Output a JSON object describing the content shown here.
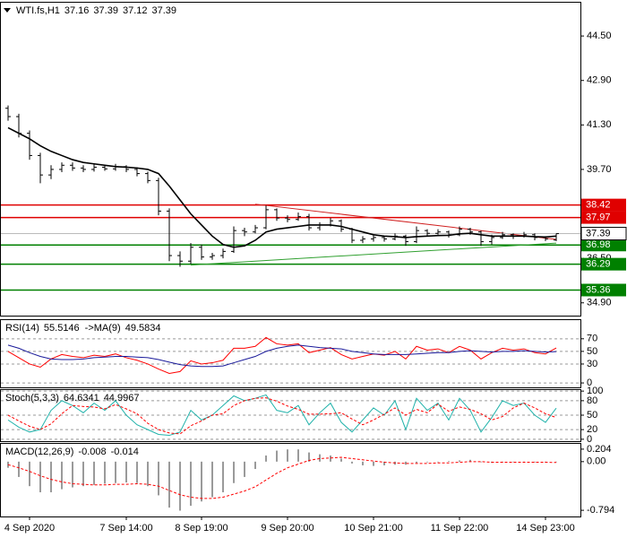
{
  "chart_data": [
    {
      "type": "candlestick",
      "title": "WTI.fs,H1",
      "color": "#000000",
      "categories": [
        null,
        null,
        "4 Sep 2020",
        null,
        null,
        null,
        null,
        null,
        null,
        null,
        null,
        "7 Sep 14:00",
        null,
        null,
        null,
        null,
        null,
        null,
        "8 Sep 19:00",
        null,
        null,
        null,
        null,
        null,
        null,
        null,
        "9 Sep 20:00",
        null,
        null,
        null,
        null,
        null,
        null,
        null,
        "10 Sep 21:00",
        null,
        null,
        null,
        null,
        null,
        null,
        null,
        "11 Sep 22:00",
        null,
        null,
        null,
        null,
        null,
        null,
        null,
        "14 Sep 23:00",
        null
      ],
      "ohlc": [
        [
          41.9,
          42.0,
          41.45,
          41.6
        ],
        [
          41.6,
          41.7,
          40.85,
          41.0
        ],
        [
          41.0,
          41.1,
          40.05,
          40.2
        ],
        [
          40.2,
          40.3,
          39.2,
          39.5
        ],
        [
          39.5,
          39.85,
          39.35,
          39.7
        ],
        [
          39.7,
          39.95,
          39.6,
          39.85
        ],
        [
          39.85,
          39.95,
          39.65,
          39.75
        ],
        [
          39.75,
          39.85,
          39.6,
          39.7
        ],
        [
          39.7,
          39.88,
          39.62,
          39.78
        ],
        [
          39.78,
          39.85,
          39.65,
          39.72
        ],
        [
          39.72,
          39.9,
          39.65,
          39.8
        ],
        [
          39.8,
          39.85,
          39.6,
          39.7
        ],
        [
          39.7,
          39.78,
          39.45,
          39.55
        ],
        [
          39.55,
          39.62,
          39.2,
          39.3
        ],
        [
          39.3,
          39.4,
          38.05,
          38.2
        ],
        [
          38.2,
          38.3,
          36.4,
          36.6
        ],
        [
          36.6,
          36.75,
          36.2,
          36.4
        ],
        [
          36.4,
          37.05,
          36.3,
          36.9
        ],
        [
          36.9,
          37.0,
          36.45,
          36.55
        ],
        [
          36.55,
          36.7,
          36.45,
          36.6
        ],
        [
          36.6,
          36.85,
          36.5,
          36.75
        ],
        [
          36.75,
          37.65,
          36.7,
          37.5
        ],
        [
          37.5,
          37.6,
          37.3,
          37.45
        ],
        [
          37.45,
          37.7,
          37.4,
          37.6
        ],
        [
          37.6,
          38.4,
          37.55,
          38.25
        ],
        [
          38.25,
          38.3,
          37.85,
          37.95
        ],
        [
          37.95,
          38.05,
          37.8,
          37.9
        ],
        [
          37.9,
          38.15,
          37.85,
          38.0
        ],
        [
          38.0,
          38.1,
          37.5,
          37.6
        ],
        [
          37.6,
          37.8,
          37.5,
          37.7
        ],
        [
          37.7,
          37.95,
          37.65,
          37.85
        ],
        [
          37.85,
          37.9,
          37.45,
          37.55
        ],
        [
          37.55,
          37.6,
          37.05,
          37.15
        ],
        [
          37.15,
          37.3,
          37.05,
          37.2
        ],
        [
          37.2,
          37.35,
          37.1,
          37.25
        ],
        [
          37.25,
          37.3,
          37.1,
          37.2
        ],
        [
          37.2,
          37.4,
          37.15,
          37.3
        ],
        [
          37.3,
          37.35,
          36.95,
          37.1
        ],
        [
          37.1,
          37.65,
          37.05,
          37.5
        ],
        [
          37.5,
          37.55,
          37.3,
          37.4
        ],
        [
          37.4,
          37.55,
          37.35,
          37.45
        ],
        [
          37.45,
          37.5,
          37.25,
          37.35
        ],
        [
          37.35,
          37.65,
          37.3,
          37.55
        ],
        [
          37.55,
          37.6,
          37.35,
          37.45
        ],
        [
          37.45,
          37.5,
          36.95,
          37.1
        ],
        [
          37.1,
          37.35,
          37.0,
          37.25
        ],
        [
          37.25,
          37.45,
          37.2,
          37.35
        ],
        [
          37.35,
          37.4,
          37.2,
          37.3
        ],
        [
          37.3,
          37.45,
          37.25,
          37.35
        ],
        [
          37.35,
          37.4,
          37.15,
          37.25
        ],
        [
          37.25,
          37.3,
          37.12,
          37.2
        ],
        [
          37.16,
          37.39,
          37.12,
          37.39
        ]
      ],
      "series": [
        {
          "type": "line",
          "color": "#000000",
          "values": [
            41.2,
            41.0,
            40.8,
            40.55,
            40.35,
            40.2,
            40.05,
            39.95,
            39.9,
            39.85,
            39.8,
            39.78,
            39.75,
            39.7,
            39.55,
            39.1,
            38.6,
            38.1,
            37.7,
            37.3,
            37.0,
            36.9,
            36.95,
            37.15,
            37.45,
            37.55,
            37.6,
            37.65,
            37.7,
            37.7,
            37.7,
            37.65,
            37.55,
            37.45,
            37.35,
            37.3,
            37.28,
            37.25,
            37.28,
            37.3,
            37.32,
            37.33,
            37.38,
            37.4,
            37.35,
            37.3,
            37.3,
            37.3,
            37.3,
            37.28,
            37.27,
            37.3
          ]
        }
      ],
      "levels": [
        {
          "value": 38.42,
          "color": "#e00000"
        },
        {
          "value": 37.97,
          "color": "#e00000"
        },
        {
          "value": 36.98,
          "color": "#008000"
        },
        {
          "value": 36.29,
          "color": "#008000"
        },
        {
          "value": 35.36,
          "color": "#008000"
        }
      ],
      "trendlines": [
        {
          "color": "#d02020",
          "points": [
            [
              23,
              38.45
            ],
            [
              51,
              37.18
            ]
          ]
        },
        {
          "color": "#30a030",
          "points": [
            [
              17,
              36.26
            ],
            [
              51,
              37.05
            ]
          ]
        }
      ],
      "ylim": [
        34.44,
        45.73
      ],
      "yticks": [
        {
          "value": 44.5,
          "label": "44.50"
        },
        {
          "value": 42.9,
          "label": "42.90"
        },
        {
          "value": 41.3,
          "label": "41.30"
        },
        {
          "value": 39.7,
          "label": "39.70"
        },
        {
          "value": 36.5,
          "label": "36.50"
        },
        {
          "value": 34.9,
          "label": "34.90"
        }
      ],
      "grid": false
    },
    {
      "type": "indicator",
      "title": "RSI(14)",
      "ylim": [
        -7,
        101
      ],
      "yticks": [
        70,
        50,
        30,
        0
      ],
      "grid": true,
      "series": [
        {
          "type": "line",
          "color": "#ff0000",
          "values": [
            50,
            40,
            30,
            25,
            38,
            45,
            42,
            40,
            44,
            42,
            46,
            40,
            36,
            30,
            22,
            15,
            18,
            35,
            30,
            32,
            36,
            55,
            55,
            58,
            72,
            62,
            60,
            62,
            48,
            52,
            56,
            45,
            38,
            42,
            46,
            44,
            50,
            38,
            58,
            52,
            54,
            48,
            58,
            52,
            38,
            48,
            55,
            52,
            54,
            48,
            46,
            55.5146
          ]
        },
        {
          "type": "line",
          "label": "->MA(9)",
          "color": "#1a1a9a",
          "values": [
            60,
            55,
            48,
            42,
            38,
            37,
            37,
            38,
            40,
            41,
            42,
            42,
            41,
            40,
            37,
            33,
            29,
            27,
            26,
            26,
            27,
            32,
            37,
            42,
            50,
            55,
            58,
            60,
            58,
            56,
            55,
            54,
            50,
            48,
            46,
            45,
            45,
            45,
            46,
            47,
            48,
            48,
            50,
            51,
            50,
            49,
            50,
            50,
            51,
            50,
            49,
            49.5834
          ]
        }
      ]
    },
    {
      "type": "indicator",
      "title": "Stoch(5,3,3)",
      "ylim": [
        -4,
        104
      ],
      "yticks": [
        100,
        80,
        50,
        20,
        0
      ],
      "grid": true,
      "series": [
        {
          "type": "line",
          "color": "#20b2aa",
          "values": [
            40,
            25,
            15,
            20,
            60,
            80,
            70,
            55,
            75,
            60,
            80,
            50,
            30,
            20,
            10,
            8,
            15,
            60,
            40,
            50,
            70,
            90,
            80,
            85,
            92,
            60,
            55,
            70,
            30,
            55,
            75,
            35,
            15,
            40,
            65,
            50,
            80,
            20,
            85,
            60,
            75,
            40,
            85,
            60,
            15,
            45,
            80,
            70,
            75,
            50,
            35,
            64.6341
          ]
        },
        {
          "type": "line",
          "dashed": true,
          "color": "#ff0000",
          "values": [
            50,
            38,
            27,
            20,
            32,
            53,
            70,
            68,
            67,
            63,
            72,
            63,
            53,
            33,
            20,
            13,
            11,
            28,
            38,
            50,
            53,
            70,
            80,
            85,
            86,
            79,
            69,
            62,
            52,
            52,
            53,
            55,
            42,
            30,
            40,
            52,
            65,
            50,
            62,
            55,
            73,
            58,
            67,
            62,
            53,
            40,
            47,
            65,
            75,
            65,
            53,
            44.9967
          ]
        }
      ]
    },
    {
      "type": "indicator",
      "title": "MACD(12,26,9)",
      "ylim": [
        -0.895,
        0.305
      ],
      "yticks": [
        0.204,
        {
          "value": 0,
          "label": "0.00"
        },
        -0.794
      ],
      "grid": false,
      "series": [
        {
          "type": "bar",
          "color": "#9a9a9a",
          "values": [
            -0.1,
            -0.25,
            -0.4,
            -0.5,
            -0.5,
            -0.45,
            -0.42,
            -0.4,
            -0.38,
            -0.36,
            -0.35,
            -0.34,
            -0.35,
            -0.4,
            -0.55,
            -0.75,
            -0.8,
            -0.72,
            -0.65,
            -0.58,
            -0.5,
            -0.35,
            -0.25,
            -0.12,
            0.1,
            0.18,
            0.2,
            0.2,
            0.15,
            0.12,
            0.1,
            0.05,
            -0.03,
            -0.06,
            -0.07,
            -0.06,
            -0.05,
            -0.05,
            -0.02,
            -0.01,
            0.0,
            0.01,
            0.02,
            0.03,
            -0.01,
            -0.02,
            -0.01,
            0.0,
            0.0,
            -0.01,
            -0.01,
            -0.008
          ]
        },
        {
          "type": "line",
          "dashed": true,
          "color": "#ff0000",
          "values": [
            -0.05,
            -0.1,
            -0.16,
            -0.23,
            -0.29,
            -0.33,
            -0.36,
            -0.37,
            -0.38,
            -0.38,
            -0.37,
            -0.37,
            -0.36,
            -0.37,
            -0.4,
            -0.47,
            -0.54,
            -0.58,
            -0.6,
            -0.6,
            -0.58,
            -0.53,
            -0.48,
            -0.41,
            -0.3,
            -0.19,
            -0.1,
            -0.04,
            0.02,
            0.05,
            0.06,
            0.07,
            0.05,
            0.03,
            0.01,
            -0.01,
            -0.02,
            -0.03,
            -0.03,
            -0.03,
            -0.02,
            -0.02,
            -0.01,
            0.0,
            0.0,
            -0.01,
            -0.01,
            -0.01,
            -0.01,
            -0.01,
            -0.01,
            -0.014
          ]
        }
      ]
    }
  ]
}
